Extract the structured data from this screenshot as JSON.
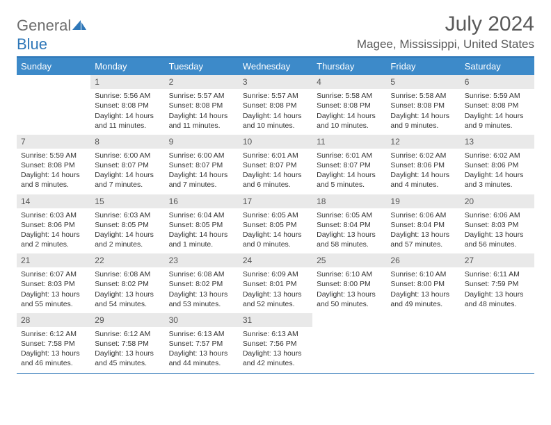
{
  "brand": {
    "part1": "General",
    "part2": "Blue"
  },
  "title": "July 2024",
  "location": "Magee, Mississippi, United States",
  "colors": {
    "header_bg": "#3d8ac9",
    "rule": "#2e77b8",
    "daynum_bg": "#e9e9e9",
    "text": "#333333",
    "muted": "#5a5a5a"
  },
  "day_headers": [
    "Sunday",
    "Monday",
    "Tuesday",
    "Wednesday",
    "Thursday",
    "Friday",
    "Saturday"
  ],
  "weeks": [
    [
      null,
      {
        "n": "1",
        "sr": "Sunrise: 5:56 AM",
        "ss": "Sunset: 8:08 PM",
        "d1": "Daylight: 14 hours",
        "d2": "and 11 minutes."
      },
      {
        "n": "2",
        "sr": "Sunrise: 5:57 AM",
        "ss": "Sunset: 8:08 PM",
        "d1": "Daylight: 14 hours",
        "d2": "and 11 minutes."
      },
      {
        "n": "3",
        "sr": "Sunrise: 5:57 AM",
        "ss": "Sunset: 8:08 PM",
        "d1": "Daylight: 14 hours",
        "d2": "and 10 minutes."
      },
      {
        "n": "4",
        "sr": "Sunrise: 5:58 AM",
        "ss": "Sunset: 8:08 PM",
        "d1": "Daylight: 14 hours",
        "d2": "and 10 minutes."
      },
      {
        "n": "5",
        "sr": "Sunrise: 5:58 AM",
        "ss": "Sunset: 8:08 PM",
        "d1": "Daylight: 14 hours",
        "d2": "and 9 minutes."
      },
      {
        "n": "6",
        "sr": "Sunrise: 5:59 AM",
        "ss": "Sunset: 8:08 PM",
        "d1": "Daylight: 14 hours",
        "d2": "and 9 minutes."
      }
    ],
    [
      {
        "n": "7",
        "sr": "Sunrise: 5:59 AM",
        "ss": "Sunset: 8:08 PM",
        "d1": "Daylight: 14 hours",
        "d2": "and 8 minutes."
      },
      {
        "n": "8",
        "sr": "Sunrise: 6:00 AM",
        "ss": "Sunset: 8:07 PM",
        "d1": "Daylight: 14 hours",
        "d2": "and 7 minutes."
      },
      {
        "n": "9",
        "sr": "Sunrise: 6:00 AM",
        "ss": "Sunset: 8:07 PM",
        "d1": "Daylight: 14 hours",
        "d2": "and 7 minutes."
      },
      {
        "n": "10",
        "sr": "Sunrise: 6:01 AM",
        "ss": "Sunset: 8:07 PM",
        "d1": "Daylight: 14 hours",
        "d2": "and 6 minutes."
      },
      {
        "n": "11",
        "sr": "Sunrise: 6:01 AM",
        "ss": "Sunset: 8:07 PM",
        "d1": "Daylight: 14 hours",
        "d2": "and 5 minutes."
      },
      {
        "n": "12",
        "sr": "Sunrise: 6:02 AM",
        "ss": "Sunset: 8:06 PM",
        "d1": "Daylight: 14 hours",
        "d2": "and 4 minutes."
      },
      {
        "n": "13",
        "sr": "Sunrise: 6:02 AM",
        "ss": "Sunset: 8:06 PM",
        "d1": "Daylight: 14 hours",
        "d2": "and 3 minutes."
      }
    ],
    [
      {
        "n": "14",
        "sr": "Sunrise: 6:03 AM",
        "ss": "Sunset: 8:06 PM",
        "d1": "Daylight: 14 hours",
        "d2": "and 2 minutes."
      },
      {
        "n": "15",
        "sr": "Sunrise: 6:03 AM",
        "ss": "Sunset: 8:05 PM",
        "d1": "Daylight: 14 hours",
        "d2": "and 2 minutes."
      },
      {
        "n": "16",
        "sr": "Sunrise: 6:04 AM",
        "ss": "Sunset: 8:05 PM",
        "d1": "Daylight: 14 hours",
        "d2": "and 1 minute."
      },
      {
        "n": "17",
        "sr": "Sunrise: 6:05 AM",
        "ss": "Sunset: 8:05 PM",
        "d1": "Daylight: 14 hours",
        "d2": "and 0 minutes."
      },
      {
        "n": "18",
        "sr": "Sunrise: 6:05 AM",
        "ss": "Sunset: 8:04 PM",
        "d1": "Daylight: 13 hours",
        "d2": "and 58 minutes."
      },
      {
        "n": "19",
        "sr": "Sunrise: 6:06 AM",
        "ss": "Sunset: 8:04 PM",
        "d1": "Daylight: 13 hours",
        "d2": "and 57 minutes."
      },
      {
        "n": "20",
        "sr": "Sunrise: 6:06 AM",
        "ss": "Sunset: 8:03 PM",
        "d1": "Daylight: 13 hours",
        "d2": "and 56 minutes."
      }
    ],
    [
      {
        "n": "21",
        "sr": "Sunrise: 6:07 AM",
        "ss": "Sunset: 8:03 PM",
        "d1": "Daylight: 13 hours",
        "d2": "and 55 minutes."
      },
      {
        "n": "22",
        "sr": "Sunrise: 6:08 AM",
        "ss": "Sunset: 8:02 PM",
        "d1": "Daylight: 13 hours",
        "d2": "and 54 minutes."
      },
      {
        "n": "23",
        "sr": "Sunrise: 6:08 AM",
        "ss": "Sunset: 8:02 PM",
        "d1": "Daylight: 13 hours",
        "d2": "and 53 minutes."
      },
      {
        "n": "24",
        "sr": "Sunrise: 6:09 AM",
        "ss": "Sunset: 8:01 PM",
        "d1": "Daylight: 13 hours",
        "d2": "and 52 minutes."
      },
      {
        "n": "25",
        "sr": "Sunrise: 6:10 AM",
        "ss": "Sunset: 8:00 PM",
        "d1": "Daylight: 13 hours",
        "d2": "and 50 minutes."
      },
      {
        "n": "26",
        "sr": "Sunrise: 6:10 AM",
        "ss": "Sunset: 8:00 PM",
        "d1": "Daylight: 13 hours",
        "d2": "and 49 minutes."
      },
      {
        "n": "27",
        "sr": "Sunrise: 6:11 AM",
        "ss": "Sunset: 7:59 PM",
        "d1": "Daylight: 13 hours",
        "d2": "and 48 minutes."
      }
    ],
    [
      {
        "n": "28",
        "sr": "Sunrise: 6:12 AM",
        "ss": "Sunset: 7:58 PM",
        "d1": "Daylight: 13 hours",
        "d2": "and 46 minutes."
      },
      {
        "n": "29",
        "sr": "Sunrise: 6:12 AM",
        "ss": "Sunset: 7:58 PM",
        "d1": "Daylight: 13 hours",
        "d2": "and 45 minutes."
      },
      {
        "n": "30",
        "sr": "Sunrise: 6:13 AM",
        "ss": "Sunset: 7:57 PM",
        "d1": "Daylight: 13 hours",
        "d2": "and 44 minutes."
      },
      {
        "n": "31",
        "sr": "Sunrise: 6:13 AM",
        "ss": "Sunset: 7:56 PM",
        "d1": "Daylight: 13 hours",
        "d2": "and 42 minutes."
      },
      null,
      null,
      null
    ]
  ]
}
